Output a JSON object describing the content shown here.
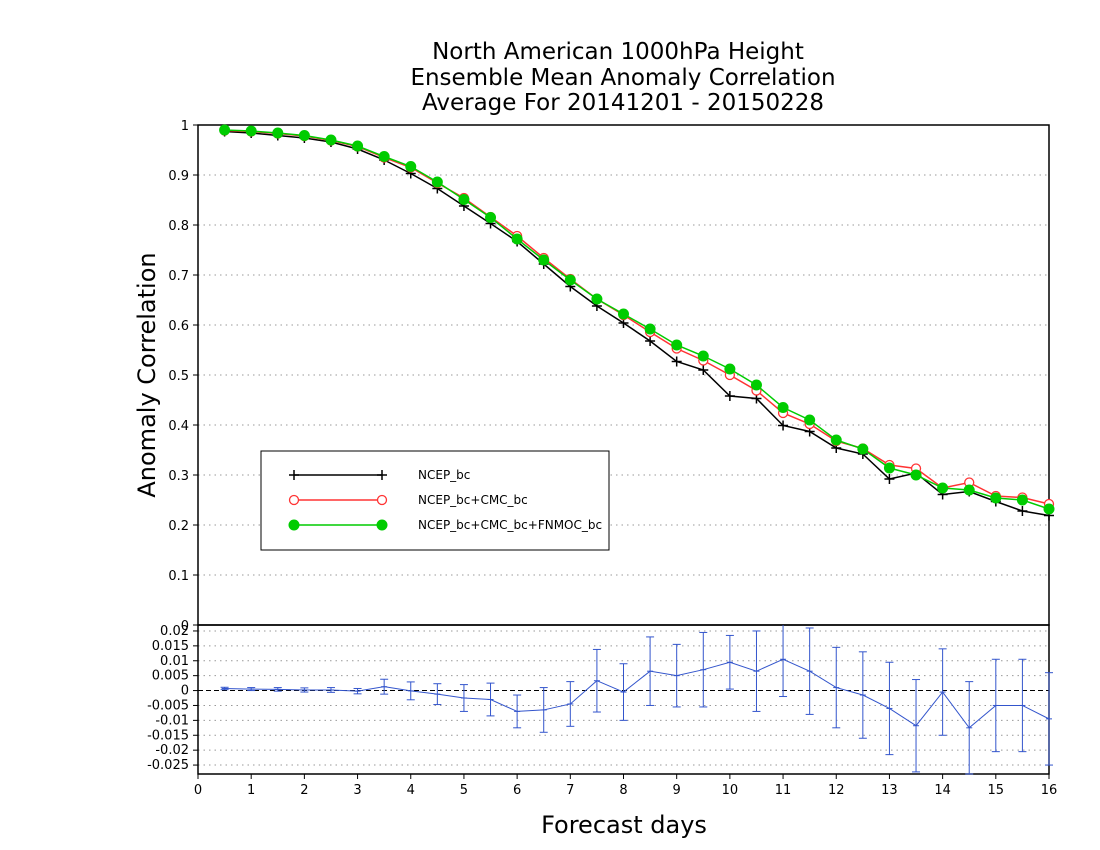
{
  "chart_data": [
    {
      "type": "line",
      "title": [
        "North American 1000hPa Height",
        "Ensemble Mean Anomaly Correlation",
        "Average For 20141201 - 20150228"
      ],
      "xlabel": "Forecast days",
      "ylabel": "Anomaly Correlation",
      "xlim": [
        0,
        16
      ],
      "ylim": [
        0,
        1
      ],
      "x_ticks": [
        "0",
        "1",
        "2",
        "3",
        "4",
        "5",
        "6",
        "7",
        "8",
        "9",
        "10",
        "11",
        "12",
        "13",
        "14",
        "15",
        "16"
      ],
      "y_ticks": [
        "0",
        "0.1",
        "0.2",
        "0.3",
        "0.4",
        "0.5",
        "0.6",
        "0.7",
        "0.8",
        "0.9",
        "1"
      ],
      "grid": true,
      "legend_position": "left-middle",
      "x": [
        0.5,
        1,
        1.5,
        2,
        2.5,
        3,
        3.5,
        4,
        4.5,
        5,
        5.5,
        6,
        6.5,
        7,
        7.5,
        8,
        8.5,
        9,
        9.5,
        10,
        10.5,
        11,
        11.5,
        12,
        12.5,
        13,
        13.5,
        14,
        14.5,
        15,
        15.5,
        16
      ],
      "series": [
        {
          "name": "NCEP_bc",
          "color": "#000000",
          "marker": "plus",
          "values": [
            0.987,
            0.984,
            0.979,
            0.974,
            0.966,
            0.952,
            0.93,
            0.903,
            0.873,
            0.838,
            0.803,
            0.767,
            0.722,
            0.677,
            0.638,
            0.604,
            0.568,
            0.527,
            0.51,
            0.458,
            0.453,
            0.399,
            0.387,
            0.354,
            0.342,
            0.292,
            0.304,
            0.261,
            0.267,
            0.247,
            0.228,
            0.219
          ]
        },
        {
          "name": "NCEP_bc+CMC_bc",
          "color": "#ff3333",
          "marker": "open-circle",
          "values": [
            0.989,
            0.987,
            0.983,
            0.978,
            0.969,
            0.957,
            0.935,
            0.915,
            0.884,
            0.854,
            0.816,
            0.778,
            0.734,
            0.692,
            0.652,
            0.62,
            0.586,
            0.553,
            0.529,
            0.5,
            0.469,
            0.424,
            0.402,
            0.368,
            0.353,
            0.32,
            0.313,
            0.274,
            0.285,
            0.258,
            0.255,
            0.242
          ]
        },
        {
          "name": "NCEP_bc+CMC_bc+FNMOC_bc",
          "color": "#00cc00",
          "marker": "filled-circle",
          "values": [
            0.99,
            0.988,
            0.984,
            0.979,
            0.97,
            0.958,
            0.937,
            0.917,
            0.886,
            0.851,
            0.815,
            0.772,
            0.73,
            0.69,
            0.652,
            0.622,
            0.592,
            0.56,
            0.538,
            0.512,
            0.48,
            0.435,
            0.41,
            0.37,
            0.352,
            0.314,
            0.3,
            0.274,
            0.27,
            0.254,
            0.25,
            0.232
          ]
        }
      ]
    },
    {
      "type": "line",
      "subtype": "difference-with-error-bars",
      "xlabel": "Forecast days",
      "xlim": [
        0,
        16
      ],
      "ylim": [
        -0.028,
        0.022
      ],
      "y_ticks": [
        "0.02",
        "0.015",
        "0.01",
        "0.005",
        "0",
        "-0.005",
        "-0.01",
        "-0.015",
        "-0.02",
        "-0.025"
      ],
      "grid": true,
      "series": [
        {
          "name": "",
          "color": "#3355cc",
          "x": [
            0.5,
            1,
            1.5,
            2,
            2.5,
            3,
            3.5,
            4,
            4.5,
            5,
            5.5,
            6,
            6.5,
            7,
            7.5,
            8,
            8.5,
            9,
            9.5,
            10,
            10.5,
            11,
            11.5,
            12,
            12.5,
            13,
            13.5,
            14,
            14.5,
            15,
            15.5,
            16
          ],
          "values": [
            0.0007,
            0.0005,
            0.0004,
            0.0002,
            0.0002,
            -0.0002,
            0.0013,
            -0.0001,
            -0.0012,
            -0.0025,
            -0.003,
            -0.007,
            -0.0065,
            -0.0045,
            0.0033,
            -0.0005,
            0.0065,
            0.005,
            0.007,
            0.0095,
            0.0065,
            0.0105,
            0.0065,
            0.001,
            -0.0015,
            -0.006,
            -0.0118,
            -0.0005,
            -0.0125,
            -0.005,
            -0.005,
            -0.0095
          ],
          "error": [
            0.0004,
            0.0005,
            0.0006,
            0.0007,
            0.0008,
            0.0009,
            0.0025,
            0.003,
            0.0035,
            0.0045,
            0.0055,
            0.0055,
            0.0075,
            0.0075,
            0.0105,
            0.0095,
            0.0115,
            0.0105,
            0.0125,
            0.009,
            0.0135,
            0.0125,
            0.0145,
            0.0135,
            0.0145,
            0.0155,
            0.0155,
            0.0145,
            0.0155,
            0.0155,
            0.0155,
            0.0155
          ]
        }
      ]
    }
  ]
}
